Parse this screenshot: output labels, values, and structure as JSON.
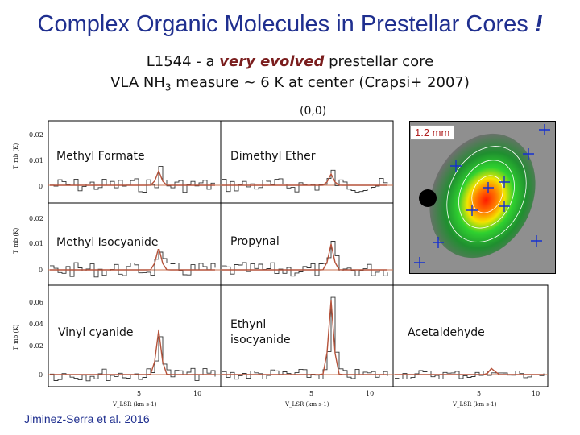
{
  "title": "Complex Organic Molecules in Prestellar Cores",
  "title_mark": "!",
  "subtitle1": {
    "prefix": "L1544 - a ",
    "emph": "very evolved",
    "suffix": " prestellar core"
  },
  "subtitle2": {
    "prefix": "VLA NH",
    "sub": "3",
    "suffix": " measure ~ 6 K at center (Crapsi+ 2007)"
  },
  "offset_label": "(0,0)",
  "map_scale": "1.2 mm",
  "citation": "Jiminez-Serra et al. 2016",
  "panels": [
    {
      "name": "Methyl Formate"
    },
    {
      "name": "Dimethyl Ether"
    },
    {
      "name": "Methyl Isocyanide"
    },
    {
      "name": "Propynal"
    },
    {
      "name": "Vinyl cyanide"
    },
    {
      "name": "Ethynl isocyanide"
    },
    {
      "name": "Acetaldehyde"
    }
  ],
  "axes": {
    "x_label": "V_LSR (km s-1)",
    "y_label": "T_mb (K)",
    "x_ticks": [
      "5",
      "10"
    ],
    "y_ticks_top": [
      "0.02",
      "0.01",
      "0"
    ],
    "y_ticks_bottom": [
      "0.06",
      "0.04",
      "0.02",
      "0"
    ]
  },
  "colors": {
    "title": "#1f2f8f",
    "emph": "#7a1d1d",
    "spectrum": "#b5523a",
    "scale_text": "#b02020"
  }
}
